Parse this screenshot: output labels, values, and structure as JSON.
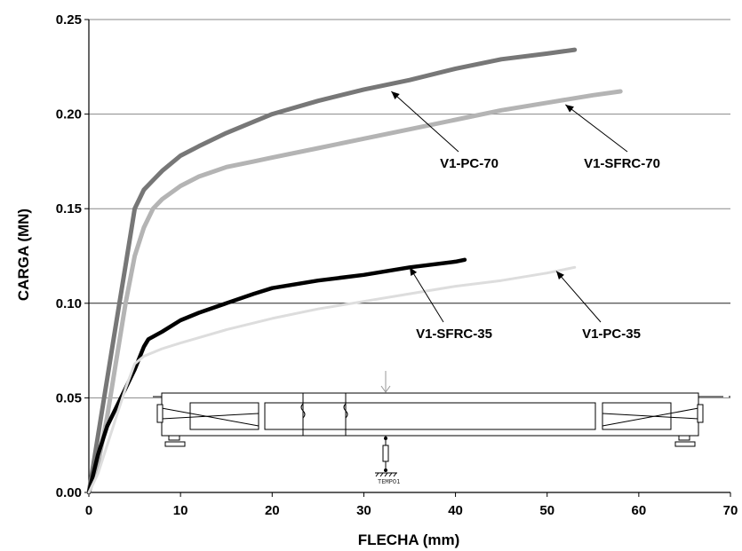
{
  "chart_data": {
    "type": "line",
    "xlabel": "FLECHA (mm)",
    "ylabel": "CARGA (MN)",
    "xlim": [
      0,
      70
    ],
    "ylim": [
      0,
      0.25
    ],
    "xticks": [
      "0",
      "10",
      "20",
      "30",
      "40",
      "50",
      "60",
      "70"
    ],
    "yticks": [
      "0.00",
      "0.05",
      "0.10",
      "0.15",
      "0.20",
      "0.25"
    ],
    "grid": "horizontal",
    "series": [
      {
        "name": "V1-PC-70",
        "color": "#777777",
        "x": [
          0,
          0.5,
          1,
          2,
          3,
          4,
          5,
          6,
          7,
          8,
          10,
          12,
          15,
          18,
          20,
          25,
          30,
          35,
          40,
          45,
          50,
          53
        ],
        "y": [
          0,
          0.015,
          0.03,
          0.06,
          0.09,
          0.12,
          0.15,
          0.16,
          0.165,
          0.17,
          0.178,
          0.183,
          0.19,
          0.196,
          0.2,
          0.207,
          0.213,
          0.218,
          0.224,
          0.229,
          0.232,
          0.234
        ]
      },
      {
        "name": "V1-SFRC-70",
        "color": "#b4b4b4",
        "x": [
          0,
          1,
          2,
          3,
          4,
          5,
          6,
          7,
          8,
          10,
          12,
          15,
          18,
          20,
          25,
          30,
          35,
          40,
          45,
          50,
          55,
          58
        ],
        "y": [
          0,
          0.015,
          0.04,
          0.07,
          0.1,
          0.125,
          0.14,
          0.15,
          0.155,
          0.162,
          0.167,
          0.172,
          0.175,
          0.177,
          0.182,
          0.187,
          0.192,
          0.197,
          0.202,
          0.206,
          0.21,
          0.212
        ]
      },
      {
        "name": "V1-SFRC-35",
        "color": "#000000",
        "x": [
          0,
          1,
          2,
          3,
          4,
          5,
          6,
          6.5,
          8,
          10,
          12,
          15,
          18,
          20,
          25,
          30,
          35,
          40,
          41
        ],
        "y": [
          0,
          0.02,
          0.035,
          0.045,
          0.055,
          0.065,
          0.077,
          0.081,
          0.085,
          0.091,
          0.095,
          0.1,
          0.105,
          0.108,
          0.112,
          0.115,
          0.119,
          0.122,
          0.123
        ]
      },
      {
        "name": "V1-PC-35",
        "color": "#dddddd",
        "x": [
          0,
          1,
          2,
          3,
          4,
          5,
          6,
          7,
          8,
          10,
          15,
          20,
          25,
          30,
          35,
          40,
          45,
          50,
          53
        ],
        "y": [
          0,
          0.01,
          0.025,
          0.04,
          0.055,
          0.068,
          0.072,
          0.074,
          0.076,
          0.079,
          0.086,
          0.092,
          0.097,
          0.101,
          0.105,
          0.109,
          0.112,
          0.116,
          0.119
        ]
      }
    ],
    "annotations": [
      {
        "text": "V1-PC-70",
        "series": "V1-PC-70",
        "x": 33,
        "y": 0.212
      },
      {
        "text": "V1-SFRC-70",
        "series": "V1-SFRC-70",
        "x": 52,
        "y": 0.205
      },
      {
        "text": "V1-SFRC-35",
        "series": "V1-SFRC-35",
        "x": 35,
        "y": 0.119
      },
      {
        "text": "V1-PC-35",
        "series": "V1-PC-35",
        "x": 51,
        "y": 0.117
      }
    ]
  },
  "inset": {
    "sensor_label": "TEMPO1"
  }
}
